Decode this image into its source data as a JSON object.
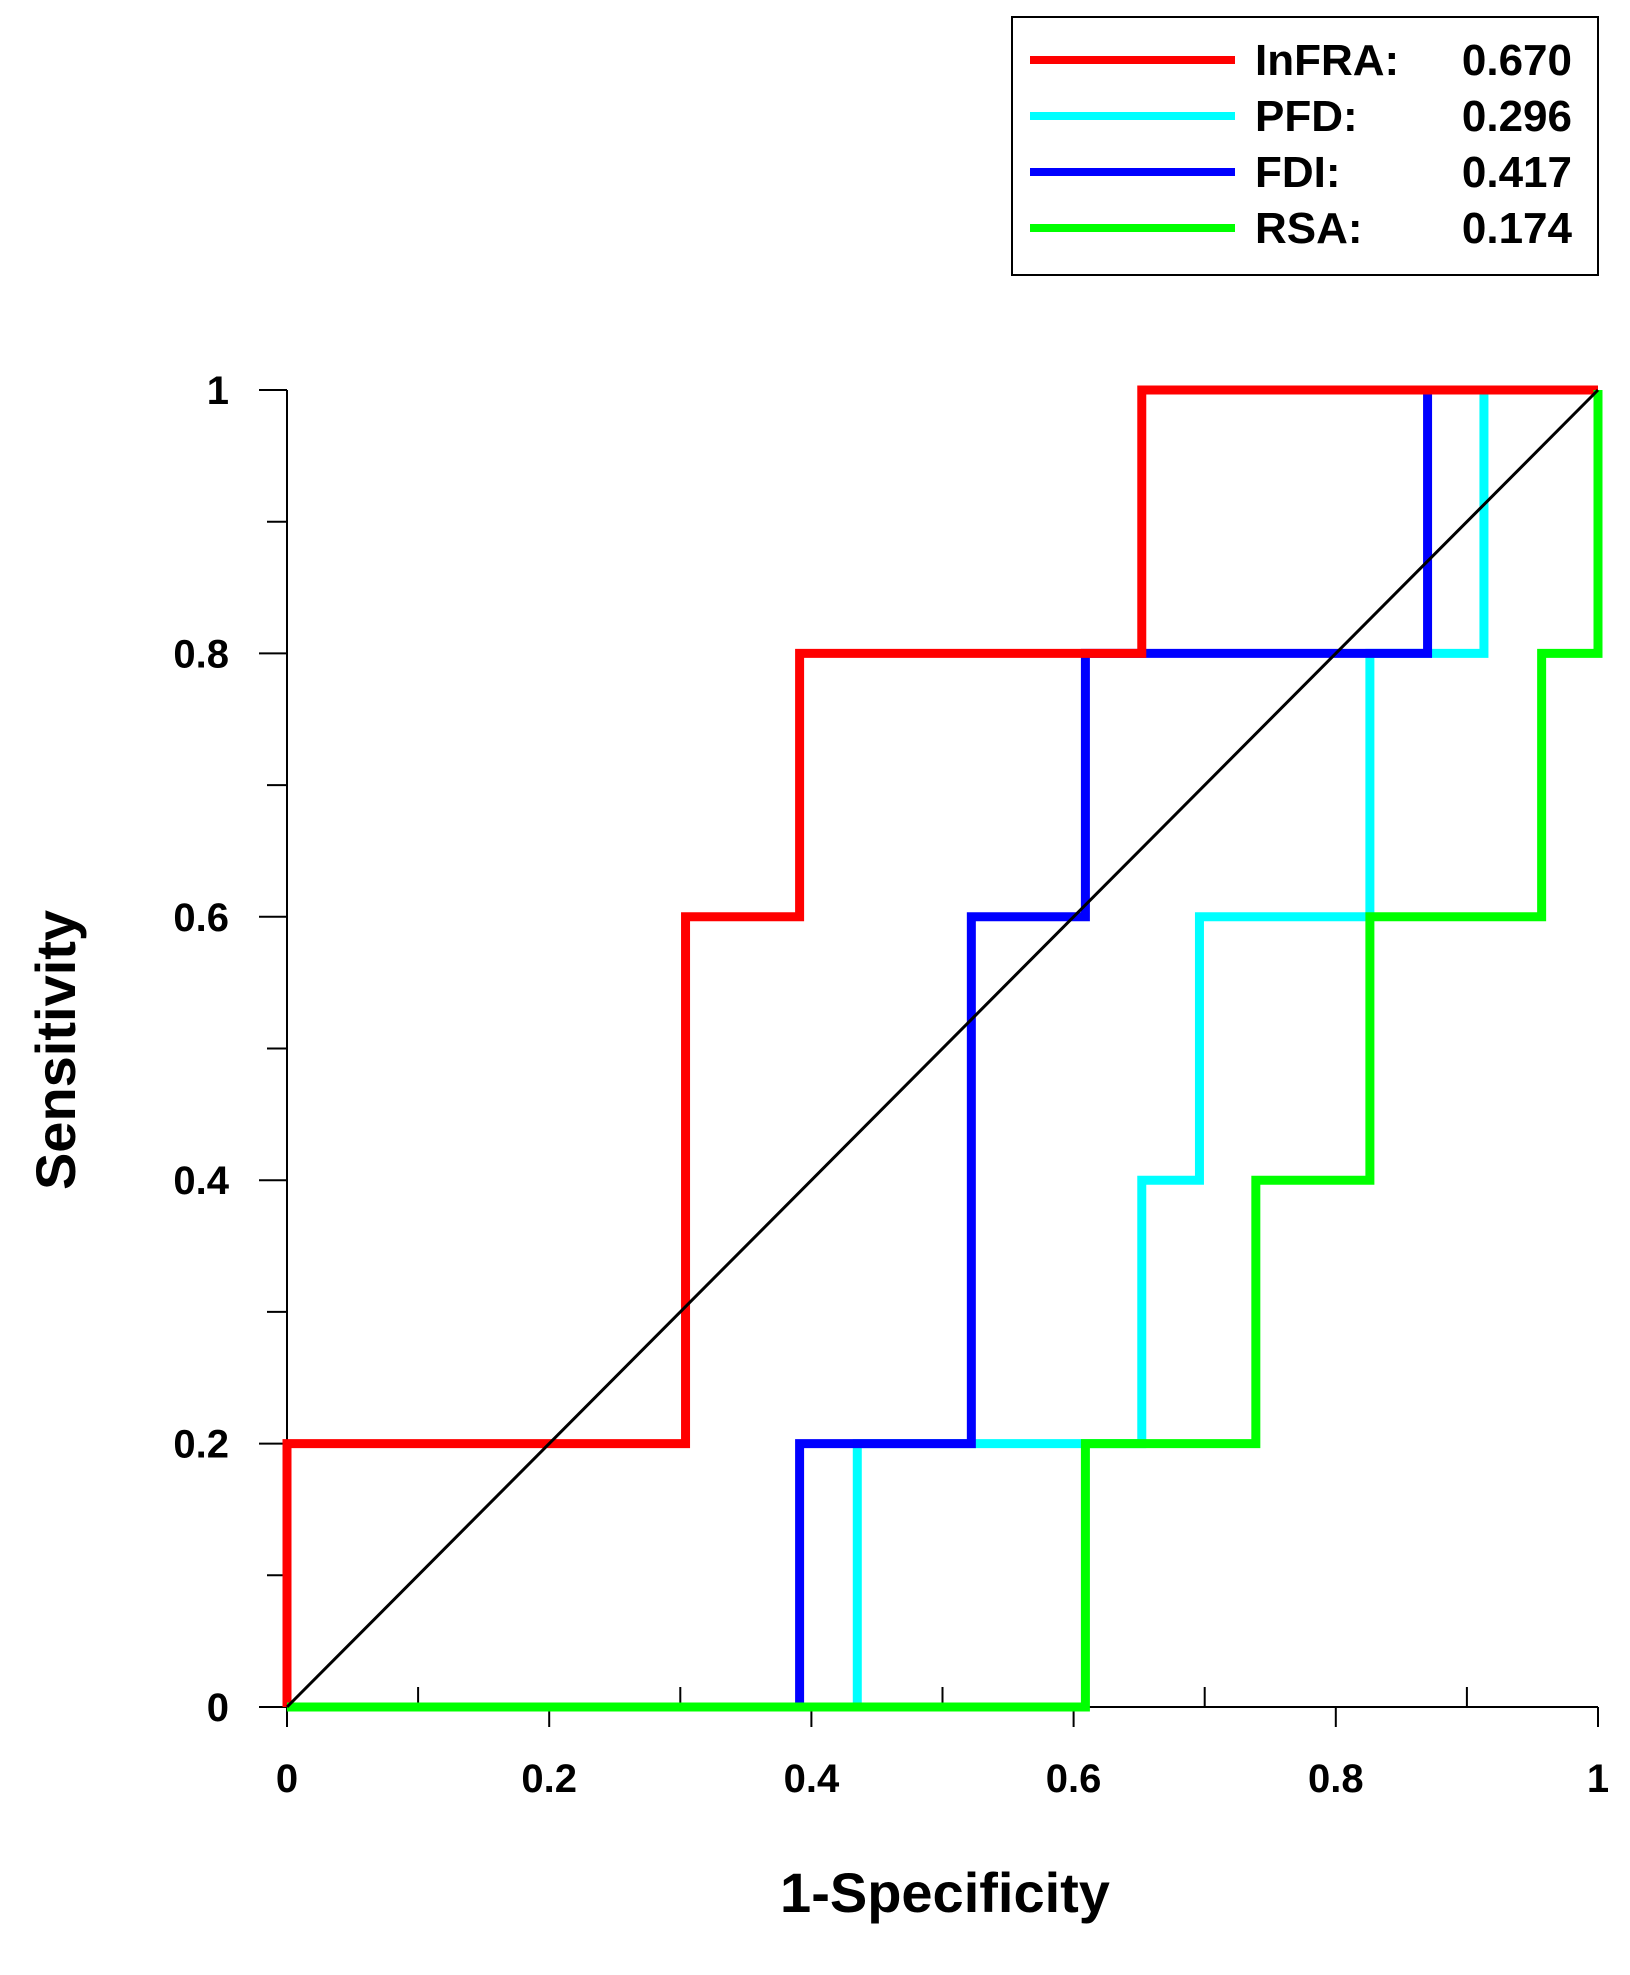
{
  "chart_data": {
    "type": "line",
    "subtype": "roc-step",
    "xlabel": "1-Specificity",
    "ylabel": "Sensitivity",
    "xlim": [
      0,
      1
    ],
    "ylim": [
      0,
      1
    ],
    "xticks": [
      "0",
      "0.2",
      "0.4",
      "0.6",
      "0.8",
      "1"
    ],
    "yticks": [
      "0",
      "0.2",
      "0.4",
      "0.6",
      "0.8",
      "1"
    ],
    "x_tick_values": [
      0,
      0.2,
      0.4,
      0.6,
      0.8,
      1
    ],
    "y_tick_values": [
      0,
      0.2,
      0.4,
      0.6,
      0.8,
      1
    ],
    "x_minor_step": 0.1,
    "y_minor_step": 0.1,
    "grid": false,
    "legend_position": "top-right",
    "diagonal": {
      "name": "reference",
      "color": "#000000",
      "points": [
        [
          0,
          0
        ],
        [
          1,
          1
        ]
      ]
    },
    "series": [
      {
        "name": "InFRA",
        "auc": "0.670",
        "label": "InFRA:",
        "color": "#ff0000",
        "points": [
          [
            0,
            0
          ],
          [
            0,
            0.2
          ],
          [
            0.304,
            0.2
          ],
          [
            0.304,
            0.6
          ],
          [
            0.391,
            0.6
          ],
          [
            0.391,
            0.8
          ],
          [
            0.652,
            0.8
          ],
          [
            0.652,
            1
          ],
          [
            1,
            1
          ]
        ]
      },
      {
        "name": "PFD",
        "auc": "0.296",
        "label": "PFD:",
        "color": "#00ffff",
        "points": [
          [
            0,
            0
          ],
          [
            0.435,
            0
          ],
          [
            0.435,
            0.2
          ],
          [
            0.652,
            0.2
          ],
          [
            0.652,
            0.4
          ],
          [
            0.696,
            0.4
          ],
          [
            0.696,
            0.6
          ],
          [
            0.826,
            0.6
          ],
          [
            0.826,
            0.8
          ],
          [
            0.913,
            0.8
          ],
          [
            0.913,
            1
          ],
          [
            1,
            1
          ]
        ]
      },
      {
        "name": "FDI",
        "auc": "0.417",
        "label": "FDI:",
        "color": "#0000ff",
        "points": [
          [
            0,
            0
          ],
          [
            0.391,
            0
          ],
          [
            0.391,
            0.2
          ],
          [
            0.522,
            0.2
          ],
          [
            0.522,
            0.6
          ],
          [
            0.609,
            0.6
          ],
          [
            0.609,
            0.8
          ],
          [
            0.87,
            0.8
          ],
          [
            0.87,
            1
          ],
          [
            1,
            1
          ]
        ]
      },
      {
        "name": "RSA",
        "auc": "0.174",
        "label": "RSA:",
        "color": "#00ff00",
        "points": [
          [
            0,
            0
          ],
          [
            0.609,
            0
          ],
          [
            0.609,
            0.2
          ],
          [
            0.739,
            0.2
          ],
          [
            0.739,
            0.4
          ],
          [
            0.826,
            0.4
          ],
          [
            0.826,
            0.6
          ],
          [
            0.957,
            0.6
          ],
          [
            0.957,
            0.8
          ],
          [
            1,
            0.8
          ],
          [
            1,
            1
          ]
        ]
      }
    ]
  }
}
